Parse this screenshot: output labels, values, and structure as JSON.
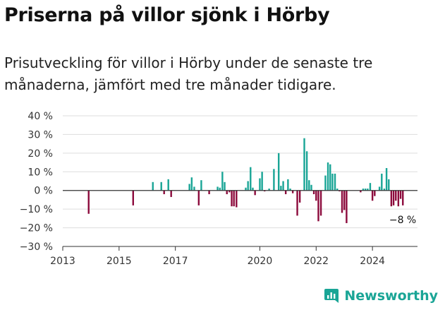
{
  "title": "Priserna på villor sjönk i Hörby",
  "subtitle": "Prisutveckling för villor i Hörby under de senaste tre månaderna, jämfört med tre månader tidigare.",
  "brand": {
    "name": "Newsworthy",
    "icon": "newsworthy-chart-icon"
  },
  "colors": {
    "positive": "#1aa596",
    "negative": "#8c0a3c",
    "axis": "#333333",
    "grid": "#dddddd"
  },
  "chart_data": {
    "type": "bar",
    "title": "",
    "xlabel": "",
    "ylabel": "",
    "ylim": [
      -30,
      40
    ],
    "yticks": [
      40,
      30,
      20,
      10,
      0,
      -10,
      -20,
      -30
    ],
    "ytick_labels": [
      "40 %",
      "30 %",
      "20 %",
      "10 %",
      "0 %",
      "−10 %",
      "−20 %",
      "−30 %"
    ],
    "xlim": [
      2013.0,
      2025.6
    ],
    "xticks": [
      2013,
      2015,
      2017,
      2020,
      2022,
      2024
    ],
    "xtick_labels": [
      "2013",
      "2015",
      "2017",
      "2020",
      "2022",
      "2024"
    ],
    "grid": true,
    "annotation": "−8 %",
    "points": [
      {
        "x": 2013.92,
        "y": -12.5
      },
      {
        "x": 2015.5,
        "y": -8
      },
      {
        "x": 2016.2,
        "y": 4.5
      },
      {
        "x": 2016.5,
        "y": 4.5
      },
      {
        "x": 2016.6,
        "y": -2
      },
      {
        "x": 2016.75,
        "y": 6
      },
      {
        "x": 2016.85,
        "y": -3.5
      },
      {
        "x": 2017.5,
        "y": 3.5
      },
      {
        "x": 2017.58,
        "y": 7
      },
      {
        "x": 2017.67,
        "y": 2
      },
      {
        "x": 2017.83,
        "y": -8
      },
      {
        "x": 2017.92,
        "y": 5.5
      },
      {
        "x": 2018.2,
        "y": -2
      },
      {
        "x": 2018.5,
        "y": 2
      },
      {
        "x": 2018.58,
        "y": 1.5
      },
      {
        "x": 2018.67,
        "y": 10
      },
      {
        "x": 2018.75,
        "y": 4.5
      },
      {
        "x": 2018.83,
        "y": -2
      },
      {
        "x": 2018.92,
        "y": -1
      },
      {
        "x": 2019.0,
        "y": -8.5
      },
      {
        "x": 2019.08,
        "y": -8.5
      },
      {
        "x": 2019.17,
        "y": -9
      },
      {
        "x": 2019.5,
        "y": 1.5
      },
      {
        "x": 2019.58,
        "y": 5
      },
      {
        "x": 2019.67,
        "y": 12.5
      },
      {
        "x": 2019.75,
        "y": 1.5
      },
      {
        "x": 2019.83,
        "y": -2.5
      },
      {
        "x": 2020.0,
        "y": 6.5
      },
      {
        "x": 2020.08,
        "y": 10
      },
      {
        "x": 2020.17,
        "y": -0.5
      },
      {
        "x": 2020.33,
        "y": 1
      },
      {
        "x": 2020.5,
        "y": 11.5
      },
      {
        "x": 2020.67,
        "y": 20
      },
      {
        "x": 2020.75,
        "y": 2.5
      },
      {
        "x": 2020.83,
        "y": 5
      },
      {
        "x": 2020.92,
        "y": -2
      },
      {
        "x": 2021.0,
        "y": 6
      },
      {
        "x": 2021.08,
        "y": 1
      },
      {
        "x": 2021.17,
        "y": -1.5
      },
      {
        "x": 2021.33,
        "y": -13.5
      },
      {
        "x": 2021.42,
        "y": -6.5
      },
      {
        "x": 2021.58,
        "y": 28
      },
      {
        "x": 2021.67,
        "y": 21
      },
      {
        "x": 2021.75,
        "y": 5.5
      },
      {
        "x": 2021.83,
        "y": 3
      },
      {
        "x": 2021.92,
        "y": -2
      },
      {
        "x": 2022.0,
        "y": -5.5
      },
      {
        "x": 2022.08,
        "y": -16.5
      },
      {
        "x": 2022.17,
        "y": -13.5
      },
      {
        "x": 2022.33,
        "y": 8
      },
      {
        "x": 2022.42,
        "y": 15
      },
      {
        "x": 2022.5,
        "y": 14
      },
      {
        "x": 2022.58,
        "y": 9
      },
      {
        "x": 2022.67,
        "y": 9
      },
      {
        "x": 2022.75,
        "y": 1
      },
      {
        "x": 2022.83,
        "y": -0.5
      },
      {
        "x": 2022.92,
        "y": -12
      },
      {
        "x": 2023.0,
        "y": -10.5
      },
      {
        "x": 2023.08,
        "y": -17.5
      },
      {
        "x": 2023.58,
        "y": -1
      },
      {
        "x": 2023.67,
        "y": 1
      },
      {
        "x": 2023.75,
        "y": 1
      },
      {
        "x": 2023.83,
        "y": 1
      },
      {
        "x": 2023.92,
        "y": 4
      },
      {
        "x": 2024.0,
        "y": -5.5
      },
      {
        "x": 2024.08,
        "y": -3
      },
      {
        "x": 2024.25,
        "y": 2
      },
      {
        "x": 2024.33,
        "y": 9
      },
      {
        "x": 2024.42,
        "y": 1
      },
      {
        "x": 2024.5,
        "y": 12
      },
      {
        "x": 2024.58,
        "y": 6
      },
      {
        "x": 2024.67,
        "y": -8.5
      },
      {
        "x": 2024.75,
        "y": -8
      },
      {
        "x": 2024.83,
        "y": -5.5
      },
      {
        "x": 2024.92,
        "y": -8.5
      },
      {
        "x": 2025.0,
        "y": -4.5
      },
      {
        "x": 2025.08,
        "y": -8
      }
    ]
  }
}
